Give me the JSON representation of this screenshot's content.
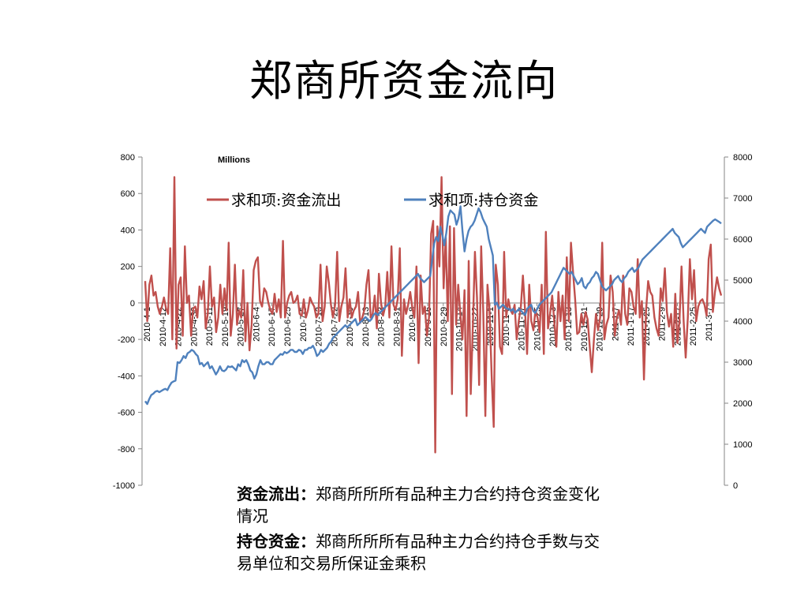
{
  "slide": {
    "title": "郑商所资金流向"
  },
  "notes": [
    {
      "term": "资金流出",
      "sep": "：",
      "text": "郑商所所所有品种主力合约持仓资金变化情况"
    },
    {
      "term": "持仓资金",
      "sep": "：",
      "text": "郑商所所所有品种主力合约持仓手数与交易单位和交易所保证金乘积"
    }
  ],
  "chart_data": {
    "type": "line",
    "unit_label": "Millions",
    "legend_position": "top",
    "grid": false,
    "y_left": {
      "min": -1000,
      "max": 800,
      "step": 200,
      "ticks": [
        "800",
        "600",
        "400",
        "200",
        "0",
        "-200",
        "-400",
        "-600",
        "-800",
        "-1000"
      ]
    },
    "y_right": {
      "min": 0,
      "max": 8000,
      "step": 1000,
      "ticks": [
        "8000",
        "7000",
        "6000",
        "5000",
        "4000",
        "3000",
        "2000",
        "1000",
        "0"
      ]
    },
    "x_tick_labels": [
      "2010-4-1",
      "2010-4-12",
      "2010-4-22",
      "2010-4-30",
      "2010-5-11",
      "2010-5-19",
      "2010-5-27",
      "2010-6-4",
      "2010-6-17",
      "2010-6-25",
      "2010-7-5",
      "2010-7-13",
      "2010-7-22",
      "2010-7-30",
      "2010-8-13",
      "2010-8-23",
      "2010-8-31",
      "2010-9-8",
      "2010-9-16",
      "2010-9-29",
      "2010-10-14",
      "2010-10-22",
      "2010-11-1",
      "2010-11-9",
      "2010-11-17",
      "2010-11-25",
      "2010-12-3",
      "2010-12-13",
      "2010-12-21",
      "2010-12-29",
      "2011-1-7",
      "2011-1-17",
      "2011-1-25",
      "2011-2-9",
      "2011-2-17",
      "2011-2-25",
      "2011-3-7"
    ],
    "series": [
      {
        "name": "求和项:资金流出",
        "axis": "left",
        "color": "#c0504d",
        "values": [
          120,
          -100,
          100,
          150,
          40,
          60,
          -20,
          -60,
          -20,
          30,
          -30,
          -60,
          300,
          -200,
          690,
          -250,
          100,
          140,
          -180,
          310,
          0,
          40,
          -180,
          -30,
          -20,
          -80,
          90,
          20,
          120,
          -140,
          -60,
          200,
          -20,
          30,
          -160,
          -80,
          100,
          -60,
          80,
          -40,
          330,
          -180,
          -60,
          210,
          -120,
          -40,
          -80,
          180,
          -210,
          0,
          -260,
          -120,
          180,
          230,
          250,
          10,
          -20,
          80,
          60,
          0,
          -40,
          -60,
          50,
          -50,
          20,
          -80,
          340,
          -80,
          0,
          40,
          60,
          0,
          10,
          40,
          -60,
          -70,
          20,
          -80,
          -40,
          30,
          0,
          -20,
          -80,
          -60,
          210,
          -100,
          -20,
          200,
          110,
          -10,
          -80,
          -10,
          280,
          -100,
          -20,
          30,
          190,
          -80,
          20,
          -80,
          -40,
          -20,
          60,
          -110,
          -80,
          -40,
          100,
          180,
          -80,
          -60,
          40,
          -140,
          160,
          0,
          -70,
          -20,
          170,
          -80,
          310,
          -10,
          -40,
          20,
          300,
          -290,
          20,
          -60,
          -10,
          60,
          -30,
          -80,
          200,
          -330,
          150,
          -60,
          -20,
          -180,
          -80,
          380,
          450,
          -820,
          420,
          200,
          690,
          80,
          360,
          -100,
          420,
          -500,
          410,
          -120,
          100,
          -60,
          -200,
          70,
          -620,
          230,
          -500,
          -120,
          280,
          30,
          -450,
          310,
          -60,
          -620,
          100,
          -40,
          -400,
          -680,
          210,
          100,
          -240,
          -280,
          280,
          -80,
          20,
          -40,
          -60,
          -10,
          -200,
          -100,
          -20,
          150,
          -40,
          -280,
          100,
          -100,
          -150,
          -40,
          -80,
          -160,
          100,
          -280,
          390,
          -140,
          -60,
          40,
          -100,
          -240,
          60,
          -100,
          40,
          -200,
          250,
          -100,
          330,
          170,
          20,
          -170,
          -160,
          -60,
          -120,
          -50,
          -90,
          -240,
          -380,
          -200,
          -60,
          -150,
          -80,
          330,
          -200,
          -120,
          -80,
          150,
          60,
          -180,
          -80,
          -40,
          -120,
          150,
          -60,
          -120,
          80,
          60,
          -20,
          -60,
          240,
          -80,
          10,
          -420,
          -40,
          120,
          60,
          40,
          -80,
          -140,
          -180,
          80,
          10,
          190,
          -50,
          -130,
          -60,
          -240,
          50,
          -220,
          -100,
          200,
          -100,
          -300,
          -80,
          240,
          20,
          180,
          -100,
          -20,
          10,
          20,
          -10,
          -70,
          240,
          320,
          -50,
          60,
          140,
          80,
          40
        ]
      },
      {
        "name": "求和项:持仓资金",
        "axis": "right",
        "color": "#4f81bd",
        "values": [
          2050,
          1980,
          2100,
          2200,
          2230,
          2280,
          2300,
          2270,
          2300,
          2330,
          2350,
          2320,
          2420,
          2500,
          2530,
          2550,
          3000,
          2980,
          3050,
          3150,
          3100,
          3220,
          3250,
          3300,
          3270,
          3200,
          3150,
          2950,
          2980,
          2900,
          2950,
          3000,
          2850,
          2900,
          2800,
          2700,
          2780,
          2900,
          2800,
          2780,
          2820,
          2900,
          2880,
          2900,
          2850,
          2800,
          2950,
          2900,
          3050,
          3000,
          3050,
          2950,
          2800,
          2750,
          2600,
          2700,
          2900,
          3050,
          2950,
          2950,
          3000,
          3000,
          2950,
          2950,
          3050,
          3100,
          3150,
          3200,
          3180,
          3250,
          3220,
          3250,
          3300,
          3300,
          3250,
          3250,
          3300,
          3280,
          3200,
          3300,
          3300,
          3350,
          3350,
          3400,
          3300,
          3150,
          3200,
          3300,
          3250,
          3300,
          3350,
          3450,
          3500,
          3600,
          3650,
          3700,
          3750,
          3800,
          3850,
          3900,
          3850,
          3900,
          3950,
          4000,
          4050,
          3900,
          3950,
          4000,
          4050,
          4100,
          4050,
          4000,
          4050,
          4150,
          4200,
          4150,
          4200,
          4250,
          4300,
          4350,
          4400,
          4450,
          4500,
          4550,
          4600,
          4650,
          4700,
          4750,
          4800,
          4850,
          4900,
          4950,
          5000,
          5050,
          5100,
          5150,
          5050,
          5000,
          4950,
          5000,
          5050,
          5100,
          5500,
          5900,
          6050,
          5950,
          6300,
          6100,
          5850,
          6150,
          6550,
          6700,
          6650,
          6600,
          6350,
          6500,
          6800,
          6200,
          5700,
          6000,
          6200,
          6300,
          6350,
          6450,
          6600,
          6750,
          6650,
          6500,
          6400,
          6300,
          6000,
          5800,
          5600,
          4400,
          4450,
          4300,
          4350,
          4400,
          4350,
          4300,
          4300,
          4250,
          4300,
          4200,
          4250,
          4300,
          4250,
          4200,
          4150,
          4300,
          4350,
          4400,
          4250,
          4200,
          4300,
          4400,
          4450,
          4500,
          4550,
          4600,
          4650,
          4700,
          4800,
          4900,
          5000,
          5100,
          5200,
          5300,
          5250,
          5200,
          5150,
          5200,
          5100,
          5000,
          4900,
          4950,
          5050,
          4850,
          4800,
          4900,
          4950,
          5050,
          5100,
          5200,
          5150,
          5000,
          4850,
          4800,
          4750,
          4800,
          4850,
          4900,
          5000,
          5050,
          5100,
          5000,
          4950,
          5050,
          5100,
          5200,
          5250,
          5300,
          5200,
          5250,
          5300,
          5400,
          5500,
          5550,
          5600,
          5650,
          5700,
          5750,
          5800,
          5850,
          5900,
          5950,
          6000,
          6050,
          6100,
          6150,
          6200,
          6250,
          6150,
          6100,
          6050,
          5900,
          5800,
          5850,
          5900,
          5950,
          6000,
          6050,
          6100,
          6150,
          6200,
          6250,
          6200,
          6150,
          6300,
          6350,
          6400,
          6450,
          6480,
          6450,
          6420,
          6380
        ]
      }
    ]
  }
}
